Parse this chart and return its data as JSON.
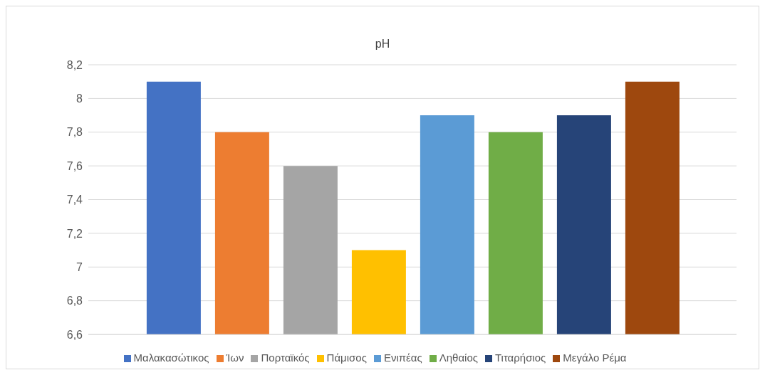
{
  "chart_data": {
    "type": "bar",
    "title": "pH",
    "categories": [
      null
    ],
    "series": [
      {
        "name": "Μαλακασώτικος",
        "color": "#4472c4",
        "values": [
          8.1
        ]
      },
      {
        "name": "Ίων",
        "color": "#ed7d31",
        "values": [
          7.8
        ]
      },
      {
        "name": "Πορταϊκός",
        "color": "#a5a5a5",
        "values": [
          7.6
        ]
      },
      {
        "name": "Πάμισος",
        "color": "#ffc000",
        "values": [
          7.1
        ]
      },
      {
        "name": "Ενιπέας",
        "color": "#5b9bd5",
        "values": [
          7.9
        ]
      },
      {
        "name": "Ληθαίος",
        "color": "#70ad47",
        "values": [
          7.8
        ]
      },
      {
        "name": "Τιταρήσιος",
        "color": "#264478",
        "values": [
          7.9
        ]
      },
      {
        "name": "Μεγάλο Ρέμα",
        "color": "#9e480e",
        "values": [
          8.1
        ]
      }
    ],
    "ylim": [
      6.6,
      8.2
    ],
    "yticks": [
      {
        "value": 6.6,
        "label": "6,6"
      },
      {
        "value": 6.8,
        "label": "6,8"
      },
      7,
      {
        "value": 7.2,
        "label": "7,2"
      },
      {
        "value": 7.4,
        "label": "7,4"
      },
      {
        "value": 7.6,
        "label": "7,6"
      },
      {
        "value": 7.8,
        "label": "7,8"
      },
      8,
      {
        "value": 8.2,
        "label": "8,2"
      }
    ],
    "grid": "y",
    "legend": "bottom"
  }
}
